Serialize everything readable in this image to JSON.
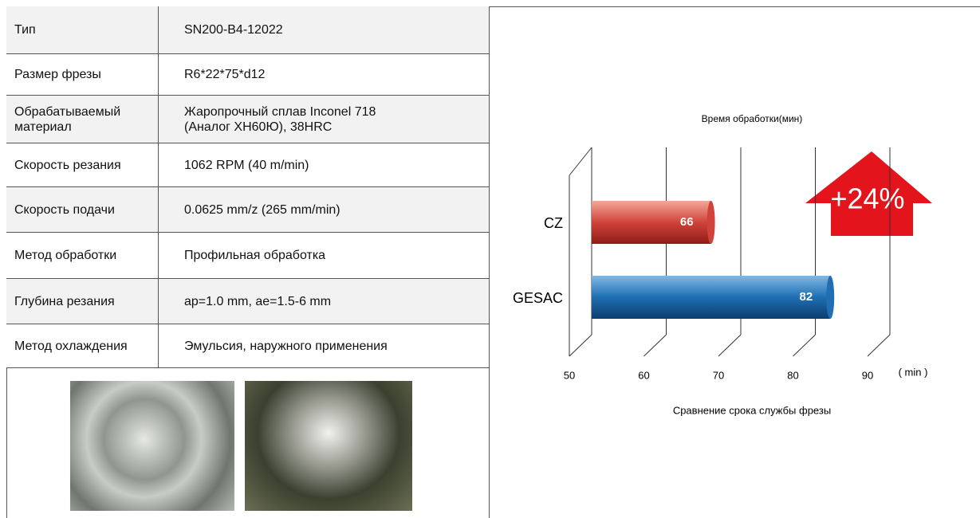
{
  "table": {
    "rows": [
      [
        "Тип",
        "SN200-B4-12022"
      ],
      [
        "Размер фрезы",
        "R6*22*75*d12"
      ],
      [
        [
          "Обрабатываемый",
          "материал"
        ],
        [
          "Жаропрочный сплав Inconel 718",
          "(Аналог ХН60Ю), 38HRC"
        ]
      ],
      [
        "Скорость резания",
        "1062 RPM (40 m/min)"
      ],
      [
        "Скорость подачи",
        "0.0625 mm/z (265 mm/min)"
      ],
      [
        "Метод обработки",
        "Профильная обработка"
      ],
      [
        "Глубина резания",
        "ap=1.0 mm, ae=1.5-6 mm"
      ],
      [
        "Метод охлаждения",
        "Эмульсия, наружного применения"
      ]
    ]
  },
  "chart_data": {
    "type": "hbar3d",
    "title": "Время обработки(мин)",
    "x_label": "( min )",
    "caption": "Сравнение срока службы фрезы",
    "annotation": "+24%",
    "categories": [
      "CZ",
      "GESAC"
    ],
    "values": [
      66,
      82
    ],
    "colors": [
      "#d0433a",
      "#1f6fb2"
    ],
    "xlim": [
      50,
      90
    ],
    "xticks": [
      50,
      60,
      70,
      80,
      90
    ]
  }
}
